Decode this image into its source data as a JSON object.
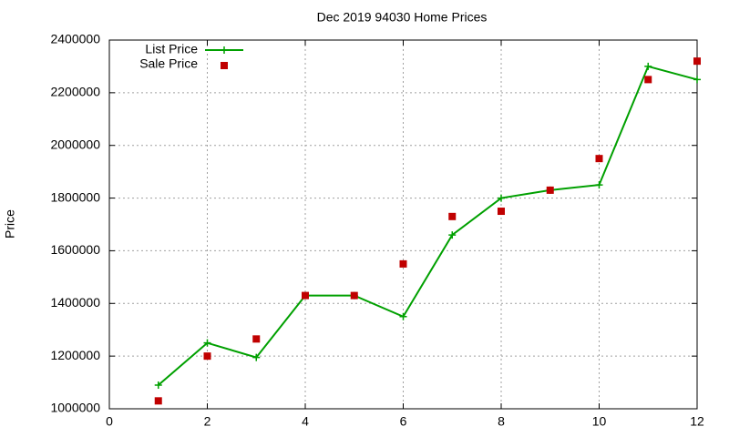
{
  "chart_data": {
    "type": "line",
    "title": "Dec 2019 94030 Home Prices",
    "y_label": "Price",
    "x": [
      1,
      2,
      3,
      4,
      5,
      6,
      7,
      8,
      9,
      10,
      11,
      12
    ],
    "series": [
      {
        "name": "List Price",
        "color": "#00a000",
        "style": "line-points",
        "values": [
          1090000,
          1250000,
          1195000,
          1430000,
          1430000,
          1350000,
          1660000,
          1800000,
          1830000,
          1850000,
          2300000,
          2250000
        ]
      },
      {
        "name": "Sale Price",
        "color": "#c00000",
        "style": "points",
        "values": [
          1030000,
          1200000,
          1265000,
          1430000,
          1430000,
          1550000,
          1730000,
          1750000,
          1830000,
          1950000,
          2250000,
          2320000
        ]
      }
    ],
    "xlim": [
      0,
      12
    ],
    "xticks": [
      0,
      2,
      4,
      6,
      8,
      10,
      12
    ],
    "ylim": [
      1000000,
      2400000
    ],
    "yticks": [
      1000000,
      1200000,
      1400000,
      1600000,
      1800000,
      2000000,
      2200000,
      2400000
    ],
    "grid": true,
    "legend": "top-left"
  }
}
